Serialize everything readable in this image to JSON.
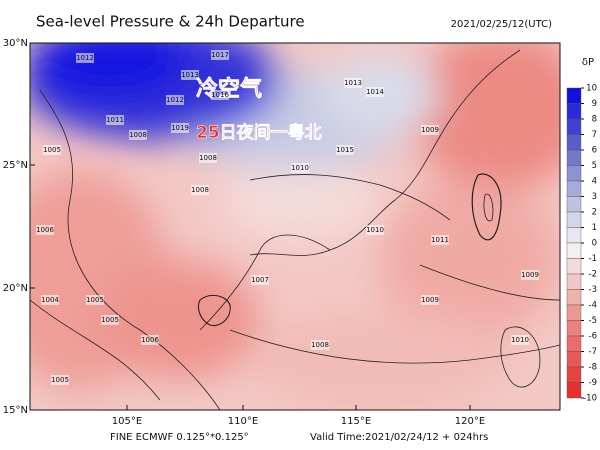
{
  "header": {
    "title": "Sea-level Pressure & 24h Departure",
    "date": "2021/02/25/12(UTC)"
  },
  "map": {
    "lat_labels": [
      "30°N",
      "25°N",
      "20°N",
      "15°N"
    ],
    "lon_labels": [
      "105°E",
      "110°E",
      "115°E",
      "120°E"
    ],
    "annotations": [
      "冷空气",
      "25日夜间一粤北"
    ],
    "isobar_labels": [
      "1012",
      "1017",
      "1013",
      "1016",
      "1012",
      "1011",
      "1008",
      "1019",
      "1013",
      "1014",
      "1008",
      "1010",
      "1015",
      "1005",
      "1006",
      "1008",
      "1009",
      "1007",
      "1005",
      "1006",
      "1008",
      "1009",
      "1010",
      "1011",
      "1009",
      "1010",
      "1005",
      "1005",
      "1004"
    ]
  },
  "colorbar": {
    "title": "δP",
    "levels": [
      10,
      9,
      8,
      7,
      6,
      5,
      4,
      3,
      2,
      1,
      0,
      -1,
      -2,
      -3,
      -4,
      -5,
      -6,
      -7,
      -8,
      -9,
      -10
    ],
    "colors": [
      "#1010e0",
      "#2a2ad8",
      "#4040d0",
      "#5a5ccc",
      "#7478cc",
      "#8c92d2",
      "#a6acda",
      "#bec3e2",
      "#d4d7ea",
      "#e6e7f0",
      "#f4f0f0",
      "#f4dada",
      "#f2c6c4",
      "#f0b0ac",
      "#ee9894",
      "#ec8280",
      "#ea6c6c",
      "#e85858",
      "#e64444",
      "#e43030"
    ]
  },
  "footer": {
    "left": "FINE ECMWF 0.125°*0.125°",
    "right": "Valid Time:2021/02/24/12 + 024hrs"
  }
}
